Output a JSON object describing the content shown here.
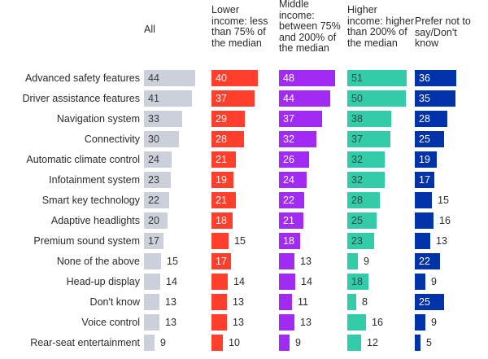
{
  "chart_data": {
    "type": "bar",
    "orientation": "horizontal",
    "layout": "small-multiples",
    "title": "",
    "xlabel": "",
    "ylabel": "",
    "xlim": [
      0,
      55
    ],
    "grid": false,
    "categories": [
      "Advanced safety features",
      "Driver assistance features",
      "Navigation system",
      "Connectivity",
      "Automatic climate control",
      "Infotainment system",
      "Smart key technology",
      "Adaptive headlights",
      "Premium sound system",
      "None of the above",
      "Head-up display",
      "Don't know",
      "Voice control",
      "Rear-seat entertainment"
    ],
    "series": [
      {
        "name": "All",
        "header": "All",
        "color": "#CCD0DA",
        "label_color_inside": "#3a3a3a",
        "values": [
          44,
          41,
          33,
          30,
          24,
          23,
          22,
          20,
          17,
          15,
          14,
          13,
          13,
          9
        ]
      },
      {
        "name": "Lower income: less than 75% of the median",
        "header": "Lower income: less than 75% of the median",
        "color": "#FF3E2C",
        "label_color_inside": "#ffffff",
        "values": [
          40,
          37,
          29,
          28,
          21,
          19,
          21,
          18,
          15,
          17,
          14,
          13,
          13,
          10
        ]
      },
      {
        "name": "Middle income: between 75% and 200% of the median",
        "header": "Middle income: between 75% and 200% of the median",
        "color": "#A22BF4",
        "label_color_inside": "#ffffff",
        "values": [
          48,
          44,
          37,
          32,
          26,
          24,
          22,
          21,
          18,
          13,
          14,
          11,
          13,
          9
        ]
      },
      {
        "name": "Higher income: higher than 200% of the median",
        "header": "Higher income: higher than 200% of the median",
        "color": "#33CCA8",
        "label_color_inside": "#2b4a44",
        "values": [
          51,
          50,
          38,
          37,
          32,
          32,
          28,
          25,
          23,
          9,
          18,
          8,
          16,
          12
        ]
      },
      {
        "name": "Prefer not to say/Don't know",
        "header": "Prefer not to say/Don't know",
        "color": "#0033AA",
        "label_color_inside": "#ffffff",
        "values": [
          36,
          35,
          28,
          25,
          19,
          17,
          15,
          16,
          13,
          22,
          9,
          25,
          9,
          5
        ]
      }
    ],
    "label_inside_threshold": 17,
    "outside_label_color": "#2b2b2b"
  }
}
